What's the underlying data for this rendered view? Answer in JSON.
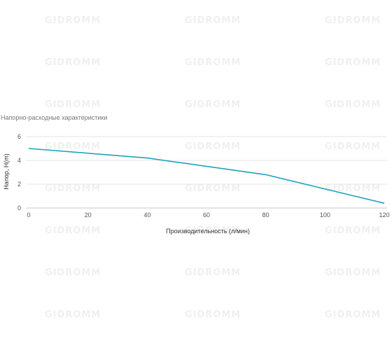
{
  "watermark_text": "GIDROMM",
  "chart_data": {
    "type": "line",
    "title": "Напорно-расходные характеристики",
    "xlabel": "Производительность (л/мин)",
    "ylabel": "Напор, H(m)",
    "xlim": [
      0,
      120
    ],
    "ylim": [
      0,
      6
    ],
    "x_ticks": [
      "0",
      "20",
      "40",
      "60",
      "80",
      "100",
      "120"
    ],
    "y_ticks": [
      "0",
      "2",
      "4",
      "6"
    ],
    "grid": true,
    "series": [
      {
        "color": "#1fa3bd",
        "x": [
          0,
          40,
          80,
          120
        ],
        "y": [
          5.0,
          4.2,
          2.8,
          0.4
        ]
      }
    ]
  }
}
